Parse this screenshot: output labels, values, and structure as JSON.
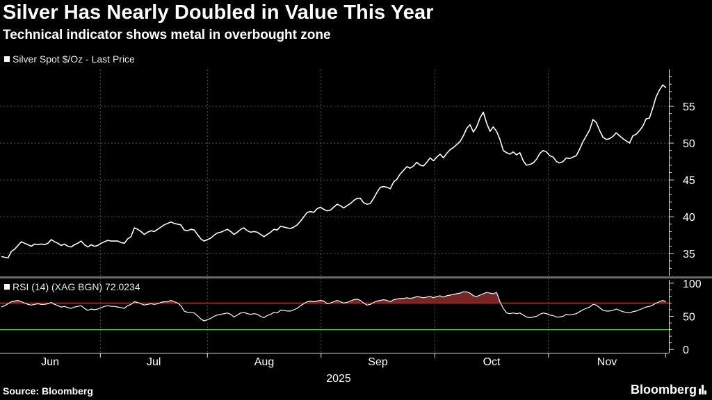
{
  "title": "Silver Has Nearly Doubled in Value This Year",
  "subtitle": "Technical indicator shows metal in overbought zone",
  "source": "Source: Bloomberg",
  "brand": "Bloomberg",
  "colors": {
    "background": "#000000",
    "line": "#ffffff",
    "overbought": "#c0392b",
    "oversold": "#2ecc40",
    "grid": "#555555"
  },
  "chart_data": [
    {
      "type": "line",
      "series": [
        {
          "name": "Silver Spot $/Oz - Last Price"
        }
      ],
      "legend_text": "Silver Spot $/Oz - Last Price",
      "ylim": [
        32,
        60
      ],
      "y_ticks": [
        35,
        40,
        45,
        50,
        55
      ],
      "x_ticks": [
        "Jun",
        "Jul",
        "Aug",
        "Sep",
        "Oct",
        "Nov"
      ],
      "x_year_label": "2025",
      "grid": true,
      "values": [
        34.6,
        34.5,
        34.4,
        35.3,
        35.6,
        36.1,
        36.6,
        36.4,
        36.2,
        36.0,
        36.3,
        36.2,
        36.3,
        36.2,
        36.4,
        36.9,
        36.6,
        36.4,
        36.1,
        36.3,
        36.0,
        35.9,
        36.2,
        36.4,
        36.7,
        36.2,
        35.9,
        36.2,
        36.0,
        36.1,
        36.4,
        36.6,
        36.8,
        36.7,
        36.7,
        36.7,
        36.5,
        36.4,
        37.0,
        37.3,
        38.5,
        38.3,
        38.0,
        37.6,
        37.9,
        38.1,
        38.0,
        38.3,
        38.6,
        38.9,
        39.1,
        39.3,
        39.1,
        39.0,
        38.9,
        38.2,
        38.1,
        38.3,
        38.2,
        37.6,
        37.0,
        36.7,
        36.9,
        37.1,
        37.5,
        37.8,
        37.9,
        38.1,
        38.3,
        38.0,
        37.6,
        37.9,
        38.3,
        38.5,
        38.1,
        37.9,
        38.0,
        37.9,
        37.6,
        37.3,
        37.6,
        37.9,
        38.3,
        38.2,
        38.7,
        38.6,
        38.5,
        38.4,
        38.6,
        38.9,
        39.4,
        40.0,
        40.6,
        40.7,
        40.6,
        41.1,
        41.3,
        41.0,
        40.8,
        40.9,
        41.3,
        41.7,
        41.5,
        41.2,
        41.5,
        41.8,
        42.2,
        42.5,
        42.5,
        41.9,
        41.7,
        41.8,
        42.5,
        43.3,
        44.0,
        44.1,
        44.0,
        43.8,
        44.7,
        45.1,
        45.8,
        46.3,
        46.8,
        46.6,
        46.9,
        47.4,
        47.0,
        46.9,
        47.4,
        48.0,
        47.6,
        48.1,
        48.5,
        48.0,
        48.6,
        49.1,
        49.4,
        49.8,
        50.2,
        51.0,
        52.0,
        52.5,
        51.5,
        52.2,
        53.4,
        54.2,
        52.7,
        51.6,
        52.2,
        51.6,
        50.5,
        49.0,
        48.7,
        48.5,
        48.8,
        48.4,
        48.7,
        47.6,
        47.0,
        47.1,
        47.3,
        47.8,
        48.6,
        49.0,
        48.8,
        48.3,
        48.1,
        47.5,
        47.3,
        47.5,
        48.0,
        47.9,
        48.1,
        48.3,
        49.2,
        50.2,
        51.0,
        51.8,
        53.2,
        52.8,
        51.7,
        50.8,
        50.5,
        50.6,
        50.9,
        51.4,
        51.0,
        50.6,
        50.3,
        50.0,
        51.0,
        51.2,
        51.7,
        52.3,
        53.3,
        53.4,
        54.8,
        56.3,
        57.2,
        57.9,
        57.5
      ]
    },
    {
      "type": "line",
      "series": [
        {
          "name": "RSI (14) (XAG BGN)"
        }
      ],
      "legend_text": "RSI (14) (XAG BGN) 72.0234",
      "last_value": 72.0234,
      "ylim": [
        -5,
        105
      ],
      "y_ticks": [
        0,
        50,
        100
      ],
      "overbought_level": 70,
      "oversold_level": 30,
      "values": [
        64,
        66,
        69,
        72,
        73,
        74,
        72,
        70,
        68,
        67,
        68,
        69,
        68,
        68,
        69,
        71,
        68,
        66,
        64,
        65,
        63,
        62,
        64,
        65,
        66,
        62,
        59,
        61,
        60,
        61,
        63,
        65,
        66,
        65,
        65,
        64,
        63,
        62,
        66,
        68,
        72,
        71,
        69,
        67,
        68,
        69,
        68,
        69,
        71,
        72,
        72,
        74,
        72,
        70,
        66,
        58,
        56,
        56,
        55,
        51,
        46,
        43,
        45,
        47,
        50,
        52,
        53,
        54,
        55,
        53,
        49,
        52,
        55,
        56,
        54,
        53,
        54,
        53,
        50,
        48,
        51,
        53,
        56,
        55,
        59,
        59,
        58,
        58,
        60,
        62,
        66,
        69,
        72,
        73,
        72,
        73,
        74,
        73,
        69,
        70,
        72,
        74,
        72,
        70,
        71,
        73,
        75,
        76,
        74,
        70,
        67,
        68,
        71,
        73,
        74,
        75,
        74,
        72,
        75,
        76,
        77,
        77,
        78,
        77,
        78,
        80,
        79,
        78,
        79,
        80,
        78,
        80,
        81,
        79,
        81,
        82,
        83,
        84,
        85,
        87,
        87,
        85,
        81,
        80,
        82,
        84,
        86,
        85,
        84,
        86,
        72,
        62,
        55,
        54,
        55,
        54,
        55,
        52,
        49,
        48,
        49,
        50,
        53,
        55,
        54,
        52,
        51,
        49,
        49,
        50,
        53,
        52,
        53,
        54,
        57,
        60,
        62,
        64,
        68,
        67,
        63,
        59,
        58,
        58,
        59,
        61,
        59,
        57,
        56,
        55,
        57,
        58,
        60,
        62,
        64,
        65,
        67,
        70,
        72,
        74,
        72
      ]
    }
  ]
}
